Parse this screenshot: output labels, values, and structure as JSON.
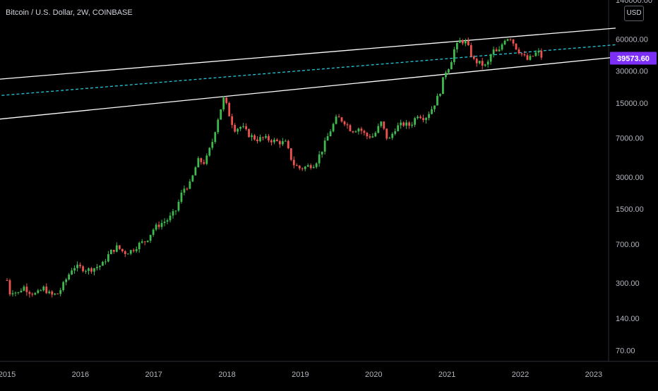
{
  "header": {
    "symbol_title": "Bitcoin / U.S. Dollar, 2W, COINBASE",
    "currency": "USD"
  },
  "colors": {
    "background": "#000000",
    "up_candle": "#26a69a",
    "up_candle_bright": "#3fb950",
    "down_candle": "#ef5350",
    "channel_line": "#ffffff",
    "midline": "#26c6da",
    "price_tag_bg": "#7b2ff7",
    "axis_text": "#b2b5be"
  },
  "chart_data": {
    "type": "candlestick",
    "title": "Bitcoin / U.S. Dollar, 2W, COINBASE",
    "xlabel": "",
    "ylabel": "",
    "y_scale": "log",
    "ylim": [
      55,
      140000
    ],
    "xlim": [
      2015.0,
      2023.3
    ],
    "grid": false,
    "x_ticks": [
      "2015",
      "2016",
      "2017",
      "2018",
      "2019",
      "2020",
      "2021",
      "2022",
      "2023"
    ],
    "y_ticks": [
      "140000.00",
      "60000.00",
      "30000.00",
      "15000.00",
      "7000.00",
      "3000.00",
      "1500.00",
      "700.00",
      "300.00",
      "140.00",
      "70.00"
    ],
    "last_price": "39573.60",
    "price_path": [
      [
        2015.0,
        320
      ],
      [
        2015.04,
        240
      ],
      [
        2015.08,
        255
      ],
      [
        2015.15,
        240
      ],
      [
        2015.22,
        280
      ],
      [
        2015.3,
        250
      ],
      [
        2015.4,
        235
      ],
      [
        2015.5,
        270
      ],
      [
        2015.6,
        230
      ],
      [
        2015.7,
        240
      ],
      [
        2015.8,
        320
      ],
      [
        2015.9,
        430
      ],
      [
        2016.0,
        420
      ],
      [
        2016.1,
        400
      ],
      [
        2016.2,
        420
      ],
      [
        2016.3,
        450
      ],
      [
        2016.4,
        580
      ],
      [
        2016.5,
        660
      ],
      [
        2016.6,
        580
      ],
      [
        2016.7,
        610
      ],
      [
        2016.8,
        700
      ],
      [
        2016.9,
        760
      ],
      [
        2017.0,
        980
      ],
      [
        2017.1,
        1100
      ],
      [
        2017.2,
        1200
      ],
      [
        2017.3,
        1450
      ],
      [
        2017.4,
        2300
      ],
      [
        2017.5,
        2600
      ],
      [
        2017.6,
        4300
      ],
      [
        2017.7,
        4100
      ],
      [
        2017.8,
        6500
      ],
      [
        2017.88,
        11000
      ],
      [
        2017.96,
        17000
      ],
      [
        2018.04,
        11000
      ],
      [
        2018.1,
        8500
      ],
      [
        2018.2,
        9000
      ],
      [
        2018.3,
        7500
      ],
      [
        2018.4,
        6800
      ],
      [
        2018.5,
        7000
      ],
      [
        2018.6,
        6700
      ],
      [
        2018.7,
        6400
      ],
      [
        2018.8,
        6300
      ],
      [
        2018.9,
        4000
      ],
      [
        2019.0,
        3600
      ],
      [
        2019.1,
        3800
      ],
      [
        2019.2,
        4000
      ],
      [
        2019.3,
        5500
      ],
      [
        2019.4,
        8000
      ],
      [
        2019.5,
        11000
      ],
      [
        2019.6,
        10000
      ],
      [
        2019.7,
        8200
      ],
      [
        2019.8,
        8700
      ],
      [
        2019.9,
        7300
      ],
      [
        2020.0,
        7300
      ],
      [
        2020.1,
        9800
      ],
      [
        2020.2,
        6500
      ],
      [
        2020.3,
        8800
      ],
      [
        2020.4,
        9500
      ],
      [
        2020.5,
        9200
      ],
      [
        2020.6,
        11700
      ],
      [
        2020.7,
        10800
      ],
      [
        2020.8,
        13500
      ],
      [
        2020.9,
        18500
      ],
      [
        2020.97,
        29000
      ],
      [
        2021.04,
        34000
      ],
      [
        2021.1,
        48000
      ],
      [
        2021.18,
        58000
      ],
      [
        2021.26,
        56000
      ],
      [
        2021.36,
        38000
      ],
      [
        2021.46,
        35000
      ],
      [
        2021.54,
        33000
      ],
      [
        2021.62,
        47000
      ],
      [
        2021.7,
        44000
      ],
      [
        2021.78,
        60000
      ],
      [
        2021.86,
        63000
      ],
      [
        2021.94,
        50000
      ],
      [
        2022.02,
        43000
      ],
      [
        2022.1,
        38000
      ],
      [
        2022.18,
        42000
      ],
      [
        2022.24,
        46000
      ],
      [
        2022.3,
        39573
      ]
    ],
    "channel": {
      "upper": [
        [
          2014.86,
          25000
        ],
        [
          2023.3,
          76000
        ]
      ],
      "lower": [
        [
          2014.86,
          10500
        ],
        [
          2023.3,
          40500
        ]
      ],
      "mid": [
        [
          2014.86,
          17500
        ],
        [
          2023.3,
          53000
        ]
      ]
    }
  }
}
